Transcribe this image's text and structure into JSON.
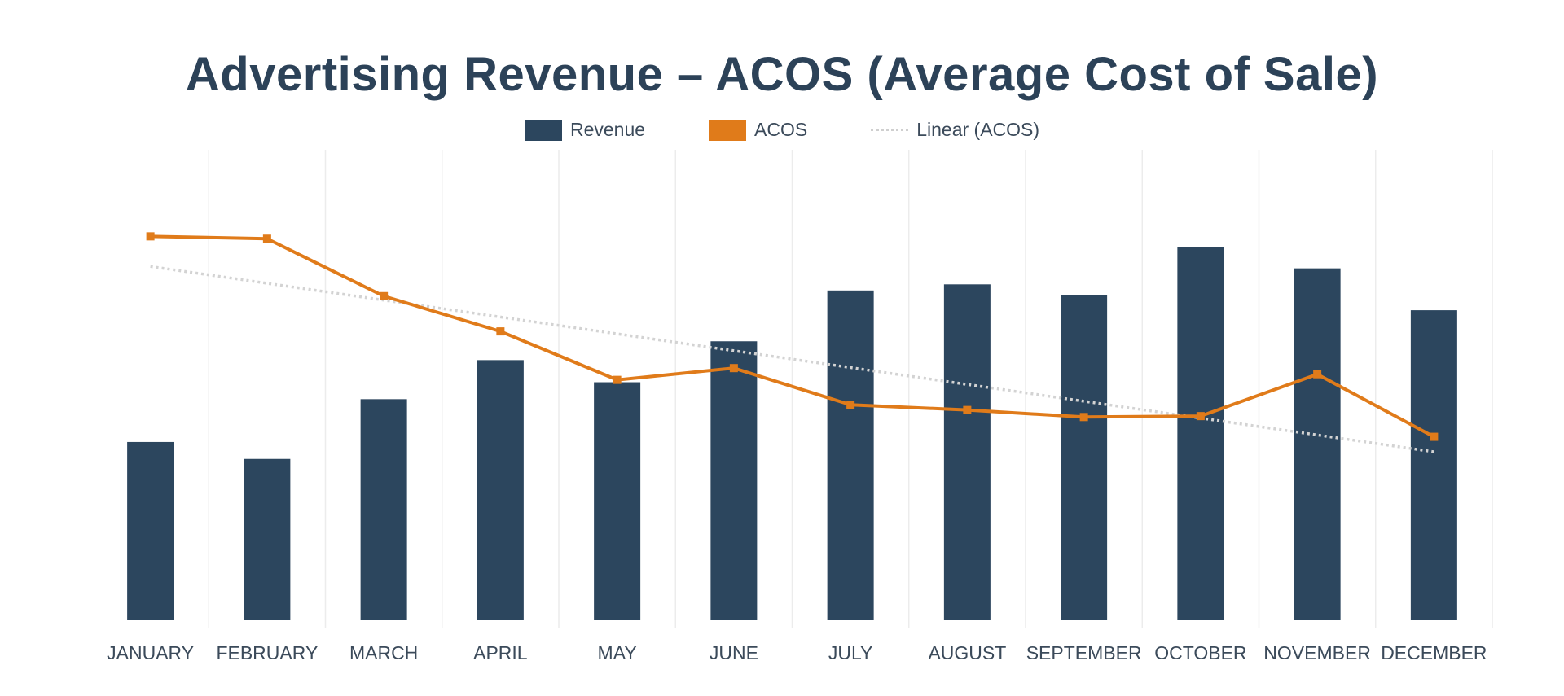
{
  "chart_data": {
    "type": "bar",
    "title": "Advertising Revenue – ACOS (Average Cost of Sale)",
    "xlabel": "",
    "ylabel": "",
    "categories": [
      "JANUARY",
      "FEBRUARY",
      "MARCH",
      "APRIL",
      "MAY",
      "JUNE",
      "JULY",
      "AUGUST",
      "SEPTEMBER",
      "OCTOBER",
      "NOVEMBER",
      "DECEMBER"
    ],
    "ylim": [
      0,
      100
    ],
    "grid": "vertical",
    "legend_position": "top",
    "series": [
      {
        "name": "Revenue",
        "type": "bar",
        "color": "#2c465e",
        "values": [
          37.9,
          34.3,
          47.0,
          55.3,
          50.6,
          59.3,
          70.1,
          71.4,
          69.1,
          79.4,
          74.8,
          65.9
        ]
      },
      {
        "name": "ACOS",
        "type": "line",
        "color": "#e07b1a",
        "marker": "square",
        "values": [
          81.6,
          81.1,
          68.9,
          61.4,
          51.1,
          53.6,
          45.8,
          44.7,
          43.2,
          43.4,
          52.3,
          39.0
        ]
      },
      {
        "name": "Linear (ACOS)",
        "type": "trendline",
        "color": "#d3d3d3",
        "style": "dotted",
        "of": "ACOS"
      }
    ]
  }
}
